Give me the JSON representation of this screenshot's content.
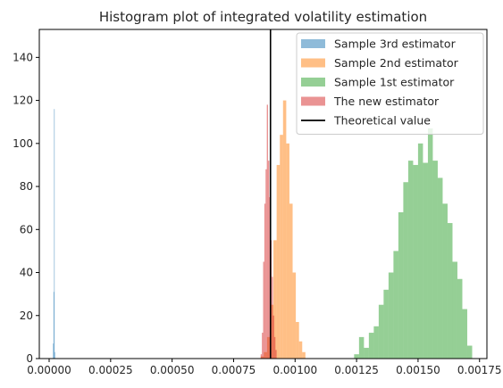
{
  "chart_data": {
    "type": "histogram",
    "title": "Histogram plot of integrated volatility estimation",
    "xlim": [
      -4e-05,
      0.00178
    ],
    "ylim": [
      0,
      153
    ],
    "grid": false,
    "legend_position": "top-right",
    "x_ticks": [
      "0.00000",
      "0.00025",
      "0.00050",
      "0.00075",
      "0.00100",
      "0.00125",
      "0.00150",
      "0.00175"
    ],
    "x_tick_values": [
      0,
      0.00025,
      0.0005,
      0.00075,
      0.001,
      0.00125,
      0.0015,
      0.00175
    ],
    "y_ticks": [
      "0",
      "20",
      "40",
      "60",
      "80",
      "100",
      "120",
      "140"
    ],
    "y_tick_values": [
      0,
      20,
      40,
      60,
      80,
      100,
      120,
      140
    ],
    "bin_width_note": "",
    "series": [
      {
        "name": "Sample 3rd estimator",
        "color": "#1f77b4",
        "bins": [
          {
            "x0": 1.55e-05,
            "x1": 1.75e-05,
            "count": 7
          },
          {
            "x0": 1.75e-05,
            "x1": 1.95e-05,
            "count": 31
          },
          {
            "x0": 1.95e-05,
            "x1": 2.15e-05,
            "count": 116
          },
          {
            "x0": 2.15e-05,
            "x1": 2.35e-05,
            "count": 3
          }
        ]
      },
      {
        "name": "Sample 2nd estimator",
        "color": "#ff7f0e",
        "bins": [
          {
            "x0": 0.00086,
            "x1": 0.000873,
            "count": 1
          },
          {
            "x0": 0.000873,
            "x1": 0.000886,
            "count": 3
          },
          {
            "x0": 0.000886,
            "x1": 0.000899,
            "count": 10
          },
          {
            "x0": 0.000899,
            "x1": 0.000912,
            "count": 25
          },
          {
            "x0": 0.000912,
            "x1": 0.000925,
            "count": 55
          },
          {
            "x0": 0.000925,
            "x1": 0.000938,
            "count": 90
          },
          {
            "x0": 0.000938,
            "x1": 0.000951,
            "count": 104
          },
          {
            "x0": 0.000951,
            "x1": 0.000964,
            "count": 120
          },
          {
            "x0": 0.000964,
            "x1": 0.000977,
            "count": 100
          },
          {
            "x0": 0.000977,
            "x1": 0.00099,
            "count": 72
          },
          {
            "x0": 0.00099,
            "x1": 0.001003,
            "count": 40
          },
          {
            "x0": 0.001003,
            "x1": 0.001016,
            "count": 17
          },
          {
            "x0": 0.001016,
            "x1": 0.001029,
            "count": 8
          },
          {
            "x0": 0.001029,
            "x1": 0.001042,
            "count": 3
          }
        ]
      },
      {
        "name": "Sample 1st estimator",
        "color": "#2ca02c",
        "bins": [
          {
            "x0": 0.00124,
            "x1": 0.00126,
            "count": 2
          },
          {
            "x0": 0.00126,
            "x1": 0.00128,
            "count": 10
          },
          {
            "x0": 0.00128,
            "x1": 0.0013,
            "count": 5
          },
          {
            "x0": 0.0013,
            "x1": 0.00132,
            "count": 12
          },
          {
            "x0": 0.00132,
            "x1": 0.00134,
            "count": 15
          },
          {
            "x0": 0.00134,
            "x1": 0.00136,
            "count": 25
          },
          {
            "x0": 0.00136,
            "x1": 0.00138,
            "count": 32
          },
          {
            "x0": 0.00138,
            "x1": 0.0014,
            "count": 40
          },
          {
            "x0": 0.0014,
            "x1": 0.00142,
            "count": 50
          },
          {
            "x0": 0.00142,
            "x1": 0.00144,
            "count": 68
          },
          {
            "x0": 0.00144,
            "x1": 0.00146,
            "count": 82
          },
          {
            "x0": 0.00146,
            "x1": 0.00148,
            "count": 92
          },
          {
            "x0": 0.00148,
            "x1": 0.0015,
            "count": 90
          },
          {
            "x0": 0.0015,
            "x1": 0.00152,
            "count": 100
          },
          {
            "x0": 0.00152,
            "x1": 0.00154,
            "count": 91
          },
          {
            "x0": 0.00154,
            "x1": 0.00156,
            "count": 107
          },
          {
            "x0": 0.00156,
            "x1": 0.00158,
            "count": 92
          },
          {
            "x0": 0.00158,
            "x1": 0.0016,
            "count": 84
          },
          {
            "x0": 0.0016,
            "x1": 0.00162,
            "count": 72
          },
          {
            "x0": 0.00162,
            "x1": 0.00164,
            "count": 63
          },
          {
            "x0": 0.00164,
            "x1": 0.00166,
            "count": 45
          },
          {
            "x0": 0.00166,
            "x1": 0.00168,
            "count": 37
          },
          {
            "x0": 0.00168,
            "x1": 0.0017,
            "count": 23
          },
          {
            "x0": 0.0017,
            "x1": 0.00172,
            "count": 6
          }
        ]
      },
      {
        "name": "The new estimator",
        "color": "#d62728",
        "bins": [
          {
            "x0": 0.00086,
            "x1": 0.000865,
            "count": 2
          },
          {
            "x0": 0.000865,
            "x1": 0.00087,
            "count": 12
          },
          {
            "x0": 0.00087,
            "x1": 0.000875,
            "count": 45
          },
          {
            "x0": 0.000875,
            "x1": 0.00088,
            "count": 72
          },
          {
            "x0": 0.00088,
            "x1": 0.000885,
            "count": 88
          },
          {
            "x0": 0.000885,
            "x1": 0.00089,
            "count": 118
          },
          {
            "x0": 0.00089,
            "x1": 0.000895,
            "count": 92
          },
          {
            "x0": 0.000895,
            "x1": 0.0009,
            "count": 75
          },
          {
            "x0": 0.0009,
            "x1": 0.000905,
            "count": 55
          },
          {
            "x0": 0.000905,
            "x1": 0.00091,
            "count": 38
          },
          {
            "x0": 0.00091,
            "x1": 0.000915,
            "count": 20
          },
          {
            "x0": 0.000915,
            "x1": 0.00092,
            "count": 10
          },
          {
            "x0": 0.00092,
            "x1": 0.000925,
            "count": 4
          }
        ]
      }
    ],
    "reference_line": {
      "name": "Theoretical value",
      "x": 0.0009,
      "color": "#000000"
    }
  }
}
